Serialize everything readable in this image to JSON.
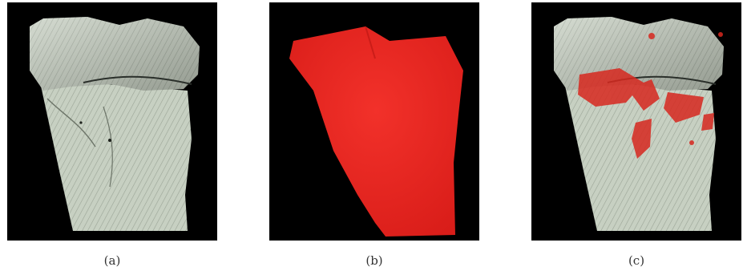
{
  "figure": {
    "panels": [
      {
        "label": "(a)",
        "content": "bone-render",
        "bone_color": "#c9d2c4",
        "highlight_color": ""
      },
      {
        "label": "(b)",
        "content": "red-volume",
        "bone_color": "",
        "highlight_color": "#ee2a24"
      },
      {
        "label": "(c)",
        "content": "bone-render-with-red-highlights",
        "bone_color": "#c9d2c4",
        "highlight_color": "#d7281f"
      }
    ]
  }
}
